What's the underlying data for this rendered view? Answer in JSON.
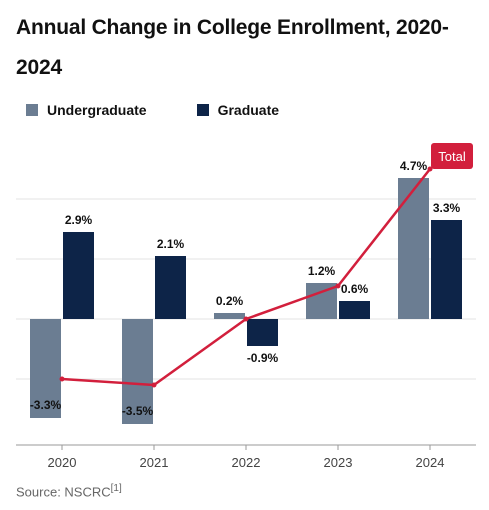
{
  "chart_data": {
    "type": "bar",
    "title": "Annual Change in College Enrollment, 2020-2024",
    "categories": [
      "2020",
      "2021",
      "2022",
      "2023",
      "2024"
    ],
    "series": [
      {
        "name": "Undergraduate",
        "values": [
          -3.3,
          -3.5,
          0.2,
          1.2,
          4.7
        ],
        "labels": [
          "-3.3%",
          "-3.5%",
          "0.2%",
          "1.2%",
          "4.7%"
        ],
        "color": "#6b7d92"
      },
      {
        "name": "Graduate",
        "values": [
          2.9,
          2.1,
          -0.9,
          0.6,
          3.3
        ],
        "labels": [
          "2.9%",
          "2.1%",
          "-0.9%",
          "0.6%",
          "3.3%"
        ],
        "color": "#0d2448"
      }
    ],
    "line_series": {
      "name": "Total",
      "values": [
        -2.0,
        -2.2,
        0.0,
        1.1,
        5.0
      ],
      "color": "#d21f3c"
    },
    "ylim": [
      -4.2,
      5.8
    ],
    "gridlines": [
      -2,
      0,
      2,
      4
    ],
    "grid": true,
    "legend_position": "top-left"
  },
  "source": {
    "text": "Source: NSCRC",
    "ref": "[1]"
  }
}
